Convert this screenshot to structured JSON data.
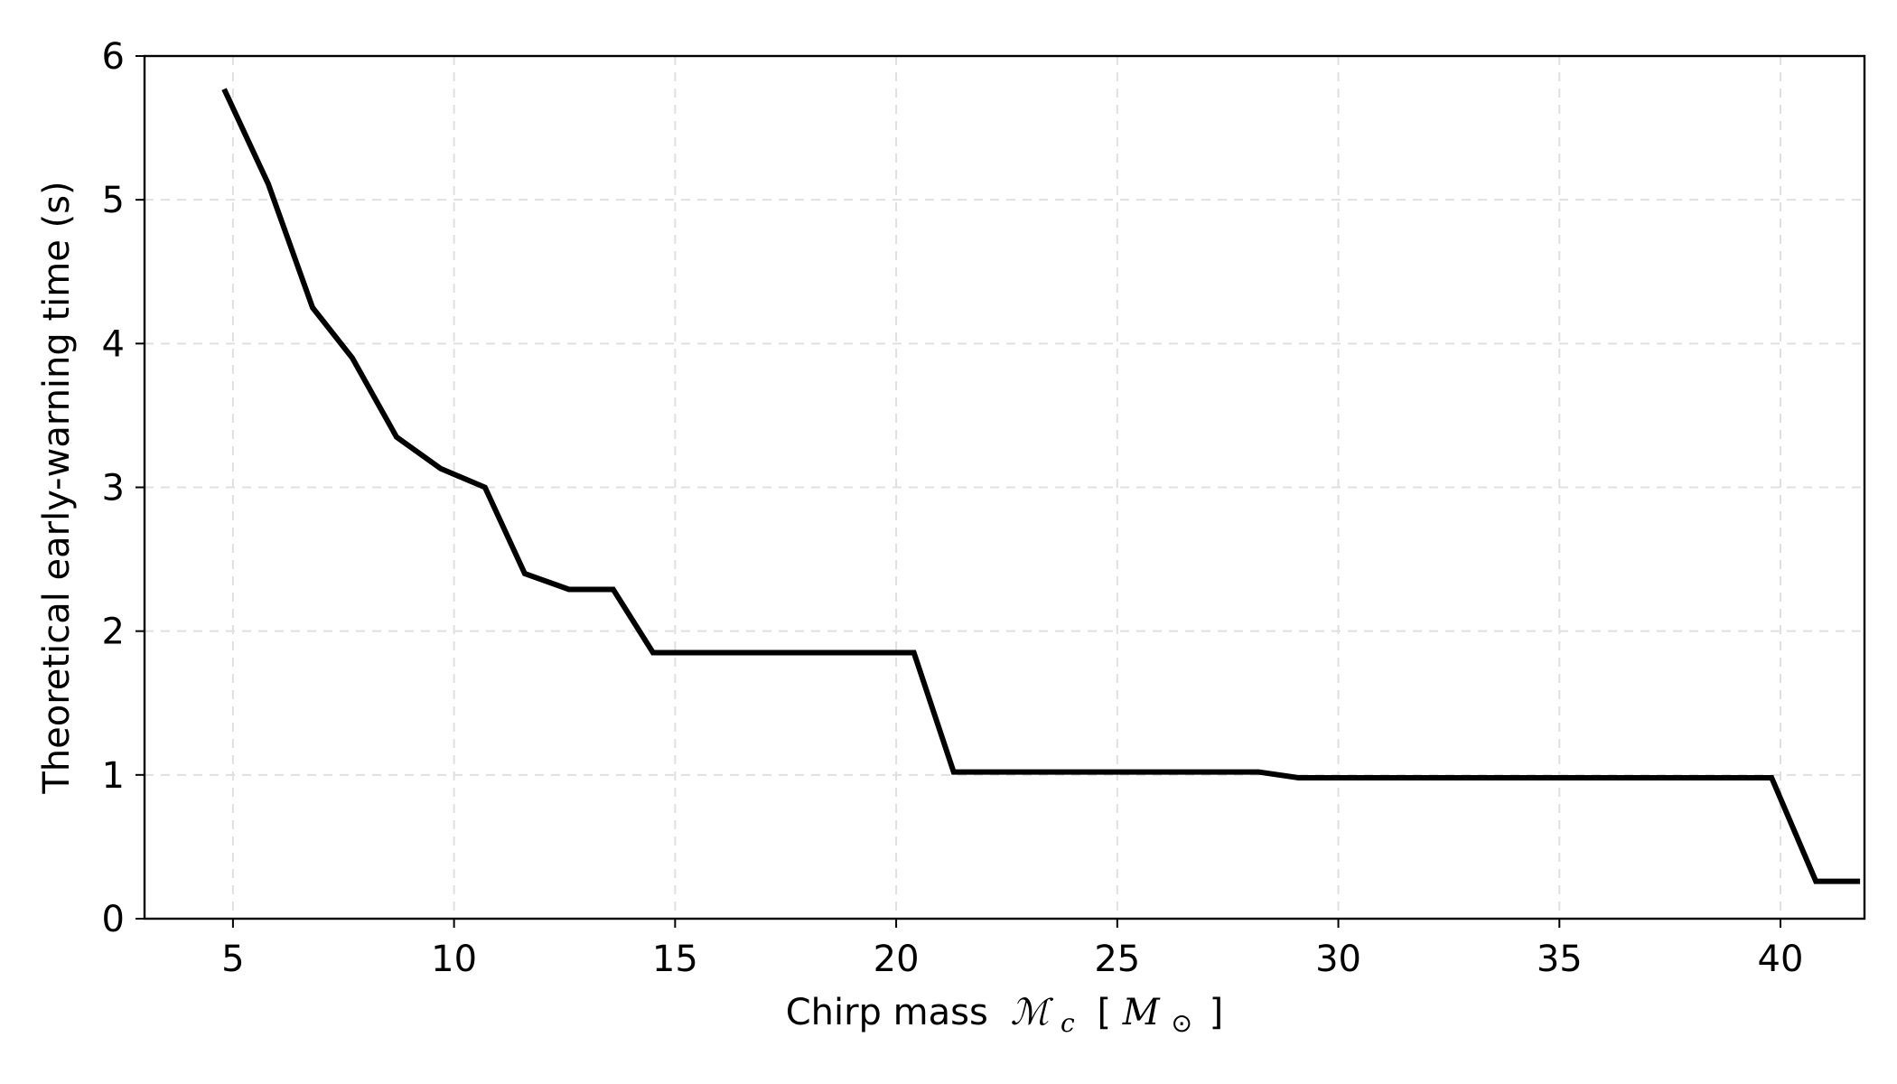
{
  "chart_data": {
    "type": "line",
    "title": "",
    "xlabel": "Chirp mass",
    "xlabel_symbol": "ℳ",
    "xlabel_subscript": "c",
    "xlabel_unit_open": "[",
    "xlabel_unit_symbol": "M",
    "xlabel_unit_subscript": "⊙",
    "xlabel_unit_close": "]",
    "ylabel": "Theoretical early-warning time (s)",
    "xlim": [
      3.0,
      41.9
    ],
    "ylim": [
      0,
      6
    ],
    "xticks": [
      5,
      10,
      15,
      20,
      25,
      30,
      35,
      40
    ],
    "xtick_labels": [
      "5",
      "10",
      "15",
      "20",
      "25",
      "30",
      "35",
      "40"
    ],
    "yticks": [
      0,
      1,
      2,
      3,
      4,
      5,
      6
    ],
    "ytick_labels": [
      "0",
      "1",
      "2",
      "3",
      "4",
      "5",
      "6"
    ],
    "grid": true,
    "series": [
      {
        "color": "#000000",
        "x": [
          4.8,
          5.8,
          6.8,
          7.7,
          8.7,
          9.7,
          10.7,
          11.6,
          12.6,
          13.6,
          14.5,
          15.5,
          16.5,
          17.5,
          18.4,
          19.4,
          20.4,
          21.3,
          22.3,
          23.3,
          24.3,
          25.2,
          26.2,
          27.2,
          28.2,
          29.1,
          30.1,
          31.1,
          32.0,
          33.0,
          34.0,
          35.0,
          35.9,
          36.9,
          37.9,
          38.8,
          39.8,
          40.8,
          41.8
        ],
        "y": [
          5.77,
          5.11,
          4.25,
          3.9,
          3.35,
          3.13,
          3.0,
          2.4,
          2.29,
          2.29,
          1.85,
          1.85,
          1.85,
          1.85,
          1.85,
          1.85,
          1.85,
          1.02,
          1.02,
          1.02,
          1.02,
          1.02,
          1.02,
          1.02,
          1.02,
          0.98,
          0.98,
          0.98,
          0.98,
          0.98,
          0.98,
          0.98,
          0.98,
          0.98,
          0.98,
          0.98,
          0.98,
          0.26,
          0.26
        ]
      }
    ]
  }
}
